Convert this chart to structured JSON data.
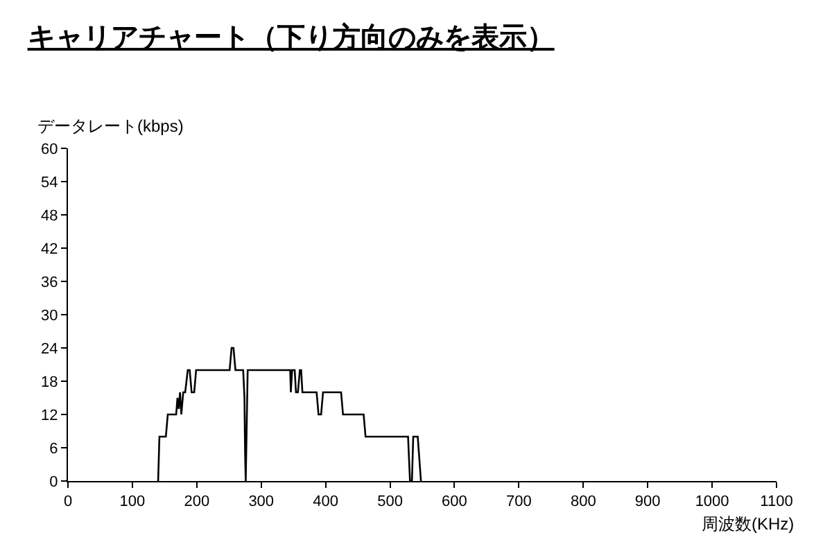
{
  "chart_data": {
    "type": "line",
    "title": "キャリアチャート（下り方向のみを表示）",
    "ylabel": "データレート(kbps)",
    "xlabel": "周波数(KHz)",
    "x": [
      140,
      142,
      152,
      155,
      168,
      170,
      172,
      174,
      176,
      179,
      182,
      186,
      189,
      192,
      196,
      199,
      251,
      254,
      257,
      260,
      272,
      274,
      275,
      276,
      279,
      345,
      346,
      348,
      352,
      354,
      357,
      360,
      362,
      364,
      386,
      389,
      393,
      396,
      424,
      427,
      459,
      462,
      528,
      531,
      534,
      536,
      543,
      548
    ],
    "series": [
      {
        "color": "#000000",
        "values": [
          0,
          8,
          8,
          12,
          12,
          15,
          13,
          16,
          12,
          16,
          16,
          20,
          20,
          16,
          16,
          20,
          20,
          24,
          24,
          20,
          20,
          15,
          5,
          0,
          20,
          20,
          16,
          20,
          20,
          16,
          16,
          20,
          20,
          16,
          16,
          12,
          12,
          16,
          16,
          12,
          12,
          8,
          8,
          0,
          0,
          8,
          8,
          0
        ]
      }
    ],
    "xlim": [
      0,
      1100
    ],
    "xticks": [
      0,
      100,
      200,
      300,
      400,
      500,
      600,
      700,
      800,
      900,
      1000,
      1100
    ],
    "ylim": [
      0,
      60
    ],
    "yticks": [
      0,
      6,
      12,
      18,
      24,
      30,
      36,
      42,
      48,
      54,
      60
    ],
    "grid": false,
    "marker": "none",
    "line_style": "solid"
  }
}
